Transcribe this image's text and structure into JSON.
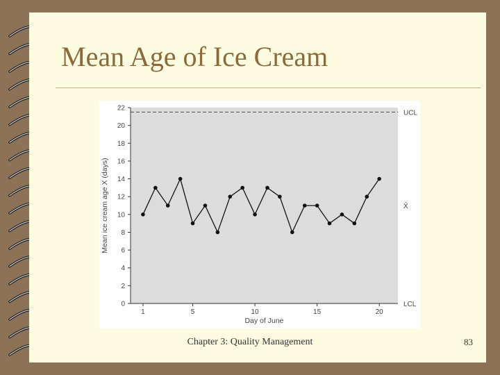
{
  "slide": {
    "title": "Mean Age of Ice Cream",
    "footer": "Chapter 3: Quality Management",
    "page_number": "83"
  },
  "colors": {
    "background": "#8c7358",
    "page": "#fdfce0",
    "title": "#8a6a3a",
    "plot_area": "#dcdcdc"
  },
  "chart_data": {
    "type": "line",
    "title": "",
    "xlabel": "Day of June",
    "ylabel": "Mean ice cream age X (days)",
    "xlim": [
      0,
      21.5
    ],
    "ylim": [
      0,
      22
    ],
    "x_ticks": [
      1,
      5,
      10,
      15,
      20
    ],
    "y_ticks": [
      0,
      2,
      4,
      6,
      8,
      10,
      12,
      14,
      16,
      18,
      20,
      22
    ],
    "grid": false,
    "legend": "none",
    "series": [
      {
        "x": [
          1,
          2,
          3,
          4,
          5,
          6,
          7,
          8,
          9,
          10,
          11,
          12,
          13,
          14,
          15,
          16,
          17,
          18,
          19,
          20
        ],
        "values": [
          10,
          13,
          11,
          14,
          9,
          11,
          8,
          12,
          13,
          10,
          13,
          12,
          8,
          11,
          11,
          9,
          10,
          9,
          12,
          14
        ]
      }
    ],
    "control_lines": [
      {
        "label": "UCL",
        "value": 21.5,
        "style": "dashed"
      },
      {
        "label": "X̄",
        "value": 11,
        "style": "none"
      },
      {
        "label": "LCL",
        "value": 0,
        "style": "solid"
      }
    ]
  }
}
